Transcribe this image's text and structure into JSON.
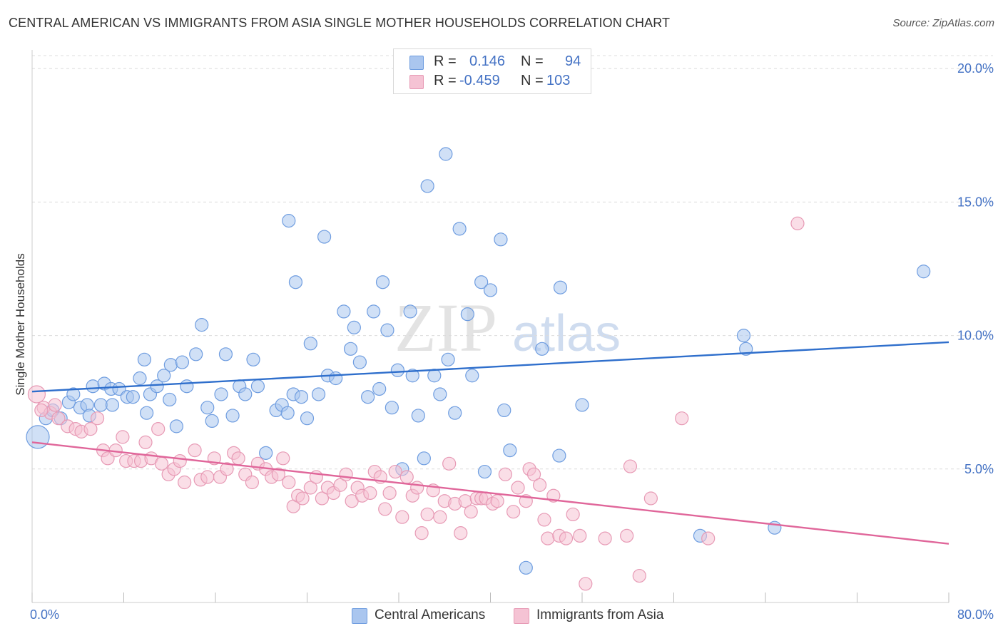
{
  "title": "CENTRAL AMERICAN VS IMMIGRANTS FROM ASIA SINGLE MOTHER HOUSEHOLDS CORRELATION CHART",
  "source": "Source: ZipAtlas.com",
  "watermark": {
    "zip": "ZIP",
    "atlas": "atlas"
  },
  "legend": {
    "rows": [
      {
        "r_label": "R =",
        "r_value": "0.146",
        "n_label": "N =",
        "n_value": "94"
      },
      {
        "r_label": "R =",
        "r_value": "-0.459",
        "n_label": "N =",
        "n_value": "103"
      }
    ]
  },
  "chart_data": {
    "type": "scatter",
    "title": "",
    "xlabel": "",
    "ylabel": "Single Mother Households",
    "xlim": [
      0,
      80
    ],
    "ylim": [
      0,
      20.7
    ],
    "x_tick_labels": [
      "0.0%",
      "80.0%"
    ],
    "y_ticks": [
      5,
      10,
      15,
      20
    ],
    "y_tick_labels": [
      "5.0%",
      "10.0%",
      "15.0%",
      "20.0%"
    ],
    "grid": "horizontal dashed",
    "legend_position": "top-center",
    "series": [
      {
        "name": "Central Americans",
        "color": "#6f9de0",
        "fill": "#aac6ef",
        "r": 0.146,
        "n": 94,
        "trend": {
          "x": [
            0,
            80
          ],
          "y": [
            7.9,
            9.75
          ]
        },
        "points": [
          [
            0.5,
            6.2
          ],
          [
            1.2,
            6.9
          ],
          [
            1.8,
            7.2
          ],
          [
            2.5,
            6.9
          ],
          [
            3.2,
            7.5
          ],
          [
            3.6,
            7.8
          ],
          [
            4.2,
            7.3
          ],
          [
            4.8,
            7.4
          ],
          [
            5.3,
            8.1
          ],
          [
            6.0,
            7.4
          ],
          [
            6.3,
            8.2
          ],
          [
            6.9,
            8.0
          ],
          [
            7.6,
            8.0
          ],
          [
            8.3,
            7.7
          ],
          [
            8.8,
            7.7
          ],
          [
            9.4,
            8.4
          ],
          [
            9.8,
            9.1
          ],
          [
            10.3,
            7.8
          ],
          [
            10.9,
            8.1
          ],
          [
            11.5,
            8.5
          ],
          [
            12.1,
            8.9
          ],
          [
            12.6,
            6.6
          ],
          [
            13.1,
            9.0
          ],
          [
            13.5,
            8.1
          ],
          [
            14.3,
            9.3
          ],
          [
            14.8,
            10.4
          ],
          [
            15.3,
            7.3
          ],
          [
            15.7,
            6.8
          ],
          [
            16.5,
            7.8
          ],
          [
            16.9,
            9.3
          ],
          [
            17.5,
            7.0
          ],
          [
            18.1,
            8.1
          ],
          [
            18.6,
            7.8
          ],
          [
            19.3,
            9.1
          ],
          [
            19.7,
            8.1
          ],
          [
            20.4,
            5.6
          ],
          [
            21.3,
            7.2
          ],
          [
            21.8,
            7.4
          ],
          [
            22.3,
            7.1
          ],
          [
            22.8,
            7.8
          ],
          [
            22.4,
            14.3
          ],
          [
            23.0,
            12.0
          ],
          [
            23.5,
            7.7
          ],
          [
            24.0,
            6.9
          ],
          [
            24.3,
            9.7
          ],
          [
            25.0,
            7.8
          ],
          [
            25.5,
            13.7
          ],
          [
            25.8,
            8.5
          ],
          [
            26.5,
            8.4
          ],
          [
            27.2,
            10.9
          ],
          [
            27.8,
            9.5
          ],
          [
            28.1,
            10.3
          ],
          [
            28.6,
            9.0
          ],
          [
            29.3,
            7.7
          ],
          [
            29.8,
            10.9
          ],
          [
            30.3,
            8.0
          ],
          [
            30.6,
            12.0
          ],
          [
            31.0,
            10.2
          ],
          [
            31.4,
            7.3
          ],
          [
            31.9,
            8.7
          ],
          [
            32.3,
            5.0
          ],
          [
            33.0,
            10.9
          ],
          [
            33.2,
            8.5
          ],
          [
            33.7,
            7.0
          ],
          [
            34.2,
            5.4
          ],
          [
            34.5,
            15.6
          ],
          [
            35.1,
            8.5
          ],
          [
            35.6,
            7.8
          ],
          [
            36.1,
            16.8
          ],
          [
            36.3,
            9.1
          ],
          [
            36.9,
            7.1
          ],
          [
            37.3,
            14.0
          ],
          [
            38.0,
            10.8
          ],
          [
            38.4,
            8.5
          ],
          [
            39.2,
            12.0
          ],
          [
            39.5,
            4.9
          ],
          [
            40.0,
            11.7
          ],
          [
            40.9,
            13.6
          ],
          [
            41.2,
            7.2
          ],
          [
            41.7,
            5.7
          ],
          [
            43.1,
            1.3
          ],
          [
            44.5,
            9.5
          ],
          [
            46.0,
            5.5
          ],
          [
            46.1,
            11.8
          ],
          [
            48.0,
            7.4
          ],
          [
            58.3,
            2.5
          ],
          [
            62.1,
            10.0
          ],
          [
            62.3,
            9.5
          ],
          [
            64.8,
            2.8
          ],
          [
            77.8,
            12.4
          ],
          [
            5.0,
            7.0
          ],
          [
            7.0,
            7.4
          ],
          [
            10.0,
            7.1
          ],
          [
            12.0,
            7.6
          ]
        ]
      },
      {
        "name": "Immigrants from Asia",
        "color": "#e79ab5",
        "fill": "#f5c3d4",
        "r": -0.459,
        "n": 103,
        "trend": {
          "x": [
            0,
            80
          ],
          "y": [
            6.0,
            2.2
          ]
        },
        "points": [
          [
            0.4,
            7.8
          ],
          [
            1.0,
            7.3
          ],
          [
            1.6,
            7.1
          ],
          [
            2.3,
            6.9
          ],
          [
            3.1,
            6.6
          ],
          [
            3.8,
            6.5
          ],
          [
            4.3,
            6.4
          ],
          [
            5.1,
            6.5
          ],
          [
            5.7,
            6.9
          ],
          [
            6.2,
            5.7
          ],
          [
            6.6,
            5.4
          ],
          [
            7.3,
            5.7
          ],
          [
            7.9,
            6.2
          ],
          [
            8.2,
            5.3
          ],
          [
            8.9,
            5.3
          ],
          [
            9.5,
            5.3
          ],
          [
            9.9,
            6.0
          ],
          [
            10.4,
            5.4
          ],
          [
            11.0,
            6.5
          ],
          [
            11.3,
            5.2
          ],
          [
            11.9,
            4.8
          ],
          [
            12.4,
            5.0
          ],
          [
            12.9,
            5.3
          ],
          [
            13.3,
            4.5
          ],
          [
            14.2,
            5.7
          ],
          [
            14.7,
            4.6
          ],
          [
            15.3,
            4.7
          ],
          [
            15.9,
            5.4
          ],
          [
            16.4,
            4.7
          ],
          [
            17.0,
            5.0
          ],
          [
            17.6,
            5.6
          ],
          [
            18.0,
            5.4
          ],
          [
            18.6,
            4.8
          ],
          [
            19.2,
            4.5
          ],
          [
            19.7,
            5.2
          ],
          [
            20.4,
            5.0
          ],
          [
            20.9,
            4.7
          ],
          [
            21.5,
            4.8
          ],
          [
            21.9,
            5.4
          ],
          [
            22.4,
            4.5
          ],
          [
            22.8,
            3.6
          ],
          [
            23.2,
            4.0
          ],
          [
            23.6,
            3.9
          ],
          [
            24.3,
            4.3
          ],
          [
            24.8,
            4.7
          ],
          [
            25.3,
            3.9
          ],
          [
            25.8,
            4.3
          ],
          [
            26.3,
            4.1
          ],
          [
            26.9,
            4.4
          ],
          [
            27.4,
            4.8
          ],
          [
            27.9,
            3.8
          ],
          [
            28.4,
            4.3
          ],
          [
            28.8,
            4.0
          ],
          [
            29.5,
            4.1
          ],
          [
            29.9,
            4.9
          ],
          [
            30.4,
            4.7
          ],
          [
            30.8,
            3.5
          ],
          [
            31.2,
            4.1
          ],
          [
            31.7,
            4.9
          ],
          [
            32.3,
            3.2
          ],
          [
            32.7,
            4.7
          ],
          [
            33.2,
            4.0
          ],
          [
            33.6,
            4.3
          ],
          [
            34.0,
            2.6
          ],
          [
            34.5,
            3.3
          ],
          [
            35.0,
            4.2
          ],
          [
            35.6,
            3.2
          ],
          [
            36.0,
            3.8
          ],
          [
            36.4,
            5.2
          ],
          [
            36.9,
            3.7
          ],
          [
            37.4,
            2.6
          ],
          [
            37.8,
            3.8
          ],
          [
            38.3,
            3.4
          ],
          [
            38.8,
            3.9
          ],
          [
            39.2,
            3.9
          ],
          [
            39.6,
            3.9
          ],
          [
            40.2,
            3.7
          ],
          [
            40.6,
            3.8
          ],
          [
            41.3,
            4.8
          ],
          [
            42.0,
            3.4
          ],
          [
            42.4,
            4.3
          ],
          [
            43.1,
            3.8
          ],
          [
            43.4,
            5.0
          ],
          [
            43.8,
            4.8
          ],
          [
            44.3,
            4.4
          ],
          [
            44.7,
            3.1
          ],
          [
            45.0,
            2.4
          ],
          [
            45.5,
            4.0
          ],
          [
            46.0,
            2.5
          ],
          [
            46.6,
            2.4
          ],
          [
            47.2,
            3.3
          ],
          [
            47.8,
            2.5
          ],
          [
            48.3,
            0.7
          ],
          [
            50.0,
            2.4
          ],
          [
            51.9,
            2.5
          ],
          [
            52.2,
            5.1
          ],
          [
            53.0,
            1.0
          ],
          [
            54.0,
            3.9
          ],
          [
            56.7,
            6.9
          ],
          [
            59.0,
            2.4
          ],
          [
            66.8,
            14.2
          ],
          [
            0.8,
            7.2
          ],
          [
            2.0,
            7.4
          ]
        ]
      }
    ]
  }
}
